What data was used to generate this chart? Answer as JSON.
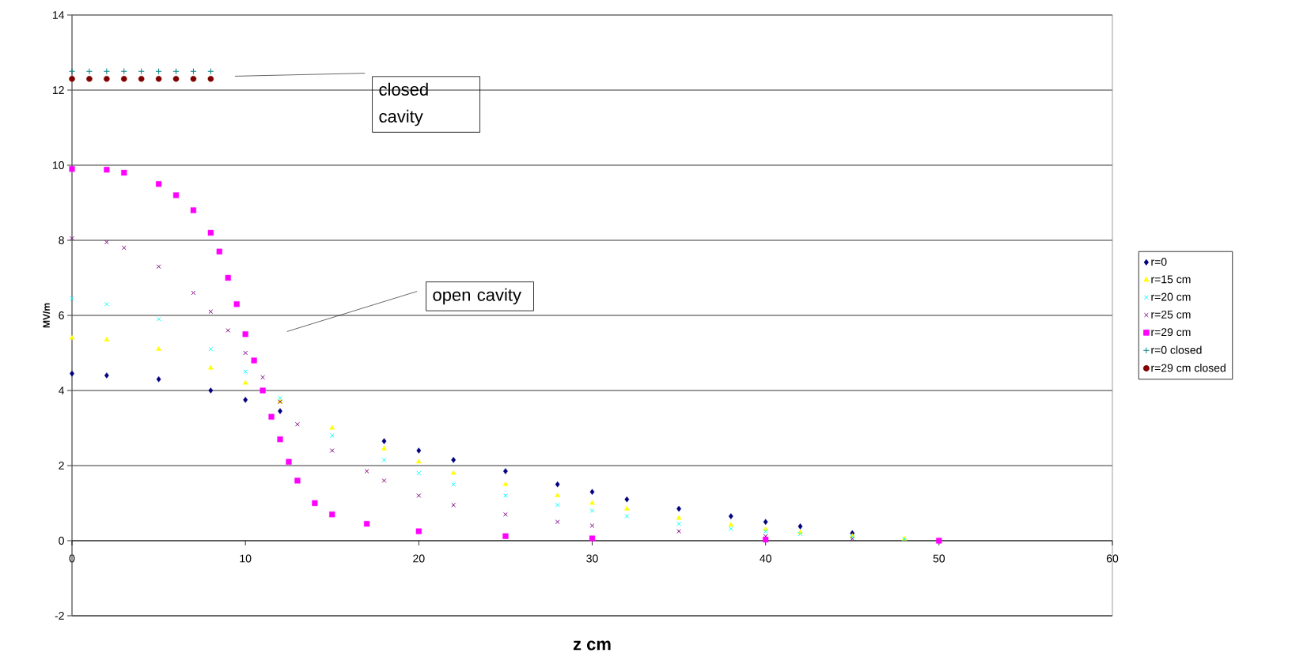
{
  "chart_data": {
    "type": "scatter",
    "xlabel": "z cm",
    "ylabel": "MV/m",
    "xlim": [
      0,
      60
    ],
    "xticks": [
      0,
      10,
      20,
      30,
      40,
      50,
      60
    ],
    "ylim": [
      -2,
      14
    ],
    "yticks": [
      -2,
      0,
      2,
      4,
      6,
      8,
      10,
      12,
      14
    ],
    "grid": "y",
    "legend": "right",
    "annotations": [
      "closed cavity",
      "open cavity"
    ],
    "series": [
      {
        "name": "r=0",
        "color": "#000080",
        "marker": "diamond",
        "x": [
          0,
          2,
          5,
          8,
          10,
          12,
          18,
          20,
          22,
          25,
          28,
          30,
          32,
          35,
          38,
          40,
          42,
          45
        ],
        "values": [
          4.45,
          4.4,
          4.3,
          4.0,
          3.75,
          3.45,
          2.65,
          2.4,
          2.15,
          1.85,
          1.5,
          1.3,
          1.1,
          0.85,
          0.65,
          0.5,
          0.38,
          0.2
        ]
      },
      {
        "name": "r=15 cm",
        "color": "#ffff00",
        "marker": "triangle",
        "x": [
          0,
          2,
          5,
          8,
          10,
          12,
          15,
          18,
          20,
          22,
          25,
          28,
          30,
          32,
          35,
          38,
          40,
          42,
          45,
          48
        ],
        "values": [
          5.4,
          5.35,
          5.1,
          4.6,
          4.2,
          3.7,
          3.0,
          2.45,
          2.1,
          1.8,
          1.5,
          1.2,
          1.0,
          0.85,
          0.6,
          0.42,
          0.3,
          0.22,
          0.12,
          0.05
        ]
      },
      {
        "name": "r=20 cm",
        "color": "#00ffff",
        "marker": "cross",
        "x": [
          0,
          2,
          5,
          8,
          10,
          12,
          15,
          18,
          20,
          22,
          25,
          28,
          30,
          32,
          35,
          38,
          40,
          42,
          45,
          48
        ],
        "values": [
          6.45,
          6.3,
          5.9,
          5.1,
          4.5,
          3.8,
          2.8,
          2.15,
          1.8,
          1.5,
          1.2,
          0.95,
          0.8,
          0.65,
          0.45,
          0.32,
          0.25,
          0.18,
          0.1,
          0.04
        ]
      },
      {
        "name": "r=25 cm",
        "color": "#800080",
        "marker": "cross",
        "x": [
          0,
          2,
          3,
          5,
          7,
          8,
          9,
          10,
          11,
          12,
          13,
          15,
          17,
          18,
          20,
          22,
          25,
          28,
          30,
          35,
          40,
          45
        ],
        "values": [
          8.05,
          7.95,
          7.8,
          7.3,
          6.6,
          6.1,
          5.6,
          5.0,
          4.35,
          3.7,
          3.1,
          2.4,
          1.85,
          1.6,
          1.2,
          0.95,
          0.7,
          0.5,
          0.4,
          0.25,
          0.12,
          0.05
        ]
      },
      {
        "name": "r=29 cm",
        "color": "#ff00ff",
        "marker": "square",
        "x": [
          0,
          2,
          3,
          5,
          6,
          7,
          8,
          8.5,
          9,
          9.5,
          10,
          10.5,
          11,
          11.5,
          12,
          12.5,
          13,
          14,
          15,
          17,
          20,
          25,
          30,
          40,
          50
        ],
        "values": [
          9.9,
          9.88,
          9.8,
          9.5,
          9.2,
          8.8,
          8.2,
          7.7,
          7.0,
          6.3,
          5.5,
          4.8,
          4.0,
          3.3,
          2.7,
          2.1,
          1.6,
          1.0,
          0.7,
          0.45,
          0.25,
          0.12,
          0.06,
          0.03,
          0
        ]
      },
      {
        "name": "r=0 closed",
        "color": "#008080",
        "marker": "plus",
        "x": [
          0,
          1,
          2,
          3,
          4,
          5,
          6,
          7,
          8
        ],
        "values": [
          12.5,
          12.5,
          12.5,
          12.5,
          12.5,
          12.5,
          12.5,
          12.5,
          12.5
        ]
      },
      {
        "name": "r=29 cm closed",
        "color": "#800000",
        "marker": "circle",
        "x": [
          0,
          1,
          2,
          3,
          4,
          5,
          6,
          7,
          8
        ],
        "values": [
          12.3,
          12.3,
          12.3,
          12.3,
          12.3,
          12.3,
          12.3,
          12.3,
          12.3
        ]
      }
    ]
  }
}
